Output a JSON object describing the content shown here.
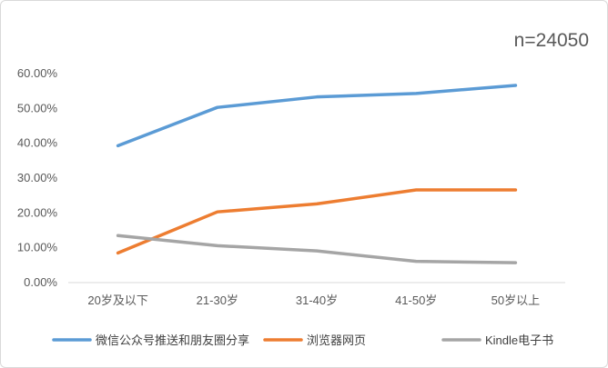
{
  "chart_data": {
    "type": "line",
    "annotation": "n=24050",
    "categories": [
      "20岁及以下",
      "21-30岁",
      "31-40岁",
      "41-50岁",
      "50岁以上"
    ],
    "series": [
      {
        "name": "微信公众号推送和朋友圈分享",
        "color": "#5b9bd5",
        "values": [
          39.3,
          50.3,
          53.3,
          54.3,
          56.6
        ]
      },
      {
        "name": "浏览器网页",
        "color": "#ed7d31",
        "values": [
          8.5,
          20.3,
          22.6,
          26.6,
          26.6
        ]
      },
      {
        "name": "Kindle电子书",
        "color": "#a5a5a5",
        "values": [
          13.5,
          10.6,
          9.1,
          6.1,
          5.7
        ]
      }
    ],
    "yticks": [
      "0.00%",
      "10.00%",
      "20.00%",
      "30.00%",
      "40.00%",
      "50.00%",
      "60.00%"
    ],
    "ylim": [
      0,
      60
    ],
    "grid": false,
    "legend": "bottom"
  }
}
